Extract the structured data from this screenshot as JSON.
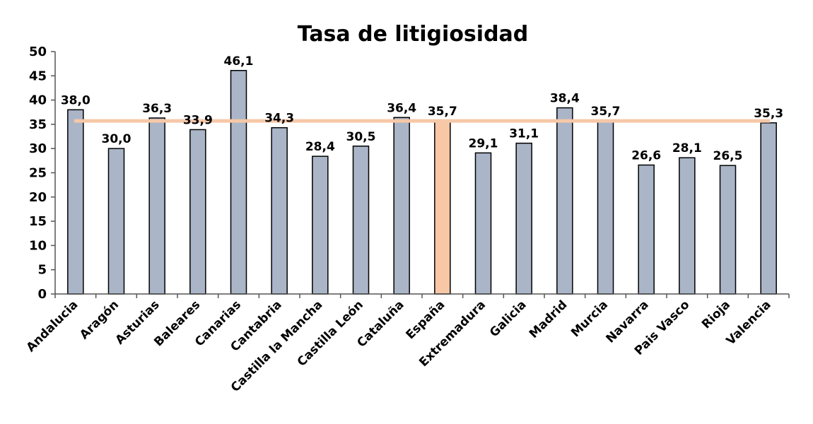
{
  "chart_data": {
    "type": "bar",
    "title": "Tasa de litigiosidad",
    "xlabel": "",
    "ylabel": "",
    "ylim": [
      0,
      50
    ],
    "yticks": [
      0,
      5,
      10,
      15,
      20,
      25,
      30,
      35,
      40,
      45,
      50
    ],
    "categories": [
      "Andalucia",
      "Aragón",
      "Asturias",
      "Baleares",
      "Canarias",
      "Cantabria",
      "Castilla la Mancha",
      "Castilla León",
      "Cataluña",
      "España",
      "Extremadura",
      "Galicia",
      "Madrid",
      "Murcia",
      "Navarra",
      "Pais Vasco",
      "Rioja",
      "Valencia"
    ],
    "values": [
      38.0,
      30.0,
      36.3,
      33.9,
      46.1,
      34.3,
      28.4,
      30.5,
      36.4,
      35.7,
      29.1,
      31.1,
      38.4,
      35.7,
      26.6,
      28.1,
      26.5,
      35.3
    ],
    "data_labels": [
      "38,0",
      "30,0",
      "36,3",
      "33,9",
      "46,1",
      "34,3",
      "28,4",
      "30,5",
      "36,4",
      "35,7",
      "29,1",
      "31,1",
      "38,4",
      "35,7",
      "26,6",
      "28,1",
      "26,5",
      "35,3"
    ],
    "reference_line": {
      "value": 35.7,
      "color": "#f6c8a8"
    },
    "highlight_category": "España",
    "colors": {
      "bar": "#aab5c8",
      "highlight_bar": "#f8c7a6",
      "bar_stroke": "#000000",
      "axis": "#555555"
    },
    "grid": false,
    "legend": "none"
  }
}
